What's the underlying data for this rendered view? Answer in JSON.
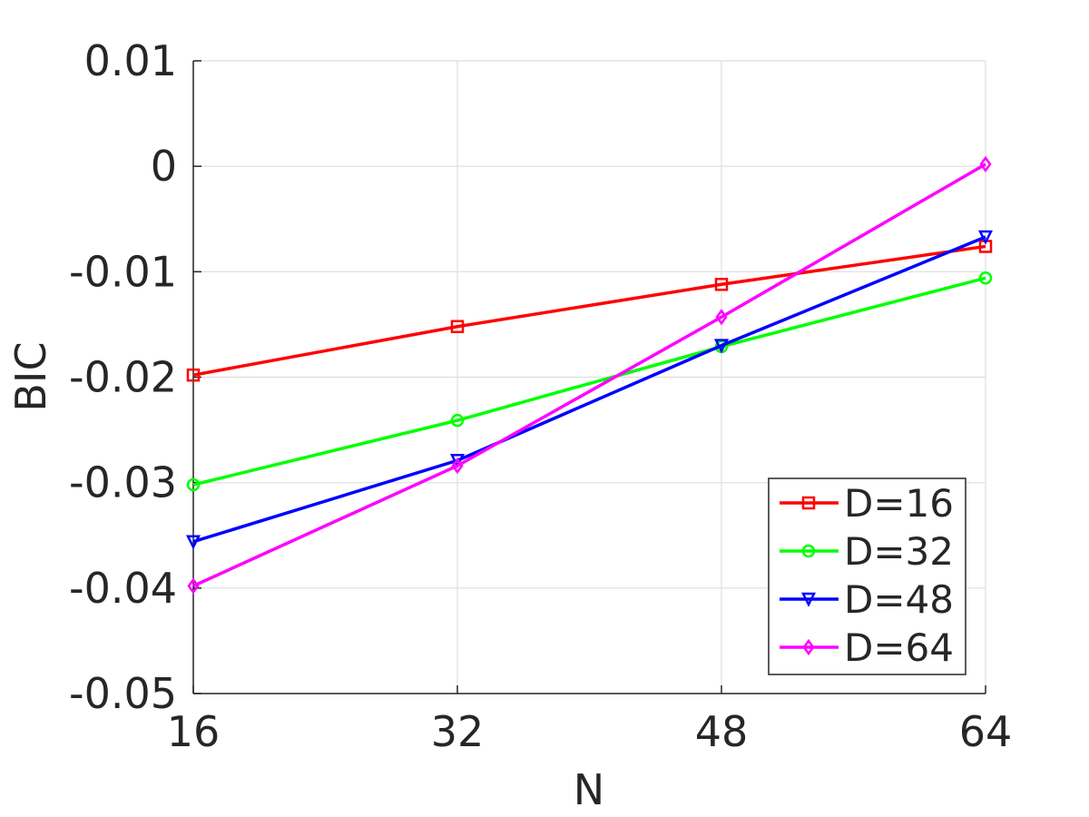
{
  "chart_data": {
    "type": "line",
    "title": "",
    "xlabel": "N",
    "ylabel": "BIC",
    "x": [
      16,
      32,
      48,
      64
    ],
    "x_tick_labels": [
      "16",
      "32",
      "48",
      "64"
    ],
    "y_tick_values": [
      -0.05,
      -0.04,
      -0.03,
      -0.02,
      -0.01,
      0,
      0.01
    ],
    "y_tick_labels": [
      "-0.05",
      "-0.04",
      "-0.03",
      "-0.02",
      "-0.01",
      "0",
      "0.01"
    ],
    "xlim": [
      16,
      64
    ],
    "ylim": [
      -0.05,
      0.01
    ],
    "grid": true,
    "legend_position": "bottom-right",
    "series": [
      {
        "name": "D=16",
        "color": "#ff0000",
        "marker": "square",
        "values": [
          -0.0198,
          -0.0152,
          -0.0112,
          -0.0076
        ]
      },
      {
        "name": "D=32",
        "color": "#00ff00",
        "marker": "circle",
        "values": [
          -0.0302,
          -0.0241,
          -0.0171,
          -0.0106
        ]
      },
      {
        "name": "D=48",
        "color": "#0000ff",
        "marker": "triangle",
        "values": [
          -0.0356,
          -0.0279,
          -0.017,
          -0.0067
        ]
      },
      {
        "name": "D=64",
        "color": "#ff00ff",
        "marker": "diamond",
        "values": [
          -0.0398,
          -0.0284,
          -0.0143,
          0.0002
        ]
      }
    ]
  }
}
